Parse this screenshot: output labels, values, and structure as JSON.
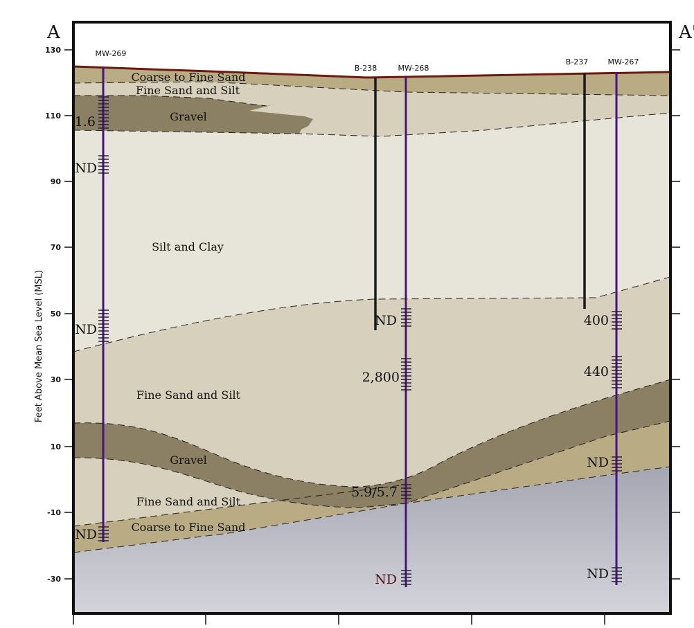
{
  "section": {
    "label_left": "A",
    "label_right": "A'",
    "ylabel": "Feet Above Mean Sea Level (MSL)",
    "yticks": [
      "130",
      "110",
      "90",
      "70",
      "50",
      "30",
      "10",
      "-10",
      "-30"
    ]
  },
  "layers": {
    "coarse_sand_top": "Coarse to Fine Sand",
    "fine_sand_silt_top": "Fine Sand and Silt",
    "gravel_top": "Gravel",
    "silt_clay": "Silt and Clay",
    "fine_sand_silt_mid": "Fine Sand and Silt",
    "gravel_low": "Gravel",
    "fine_sand_silt_low": "Fine Sand and Silt",
    "coarse_sand_low": "Coarse to Fine Sand"
  },
  "wells": {
    "mw269": "MW-269",
    "b238": "B-238",
    "mw268": "MW-268",
    "b237": "B-237",
    "mw267": "MW-267"
  },
  "samples": {
    "mw269_1": "1.6",
    "mw269_2": "ND",
    "mw269_3": "ND",
    "mw269_4": "ND",
    "mw268_1": "ND",
    "mw268_2": "2,800",
    "mw268_3": "5.9/5.7",
    "mw268_4": "ND",
    "mw267_1": "400",
    "mw267_2": "440",
    "mw267_3": "ND",
    "mw267_4": "ND"
  },
  "colors": {
    "coarse_sand": "#b9ab84",
    "fine_sand_silt": "#d6d0bd",
    "gravel": "#8b8063",
    "silt_clay": "#e7e4d9",
    "bedrock_top": "#a5a6b2",
    "bedrock_bottom": "#d3d4da",
    "ground_surface": "#6b1a10",
    "well_casing": "#45157a",
    "boring": "#1a1a1a"
  }
}
